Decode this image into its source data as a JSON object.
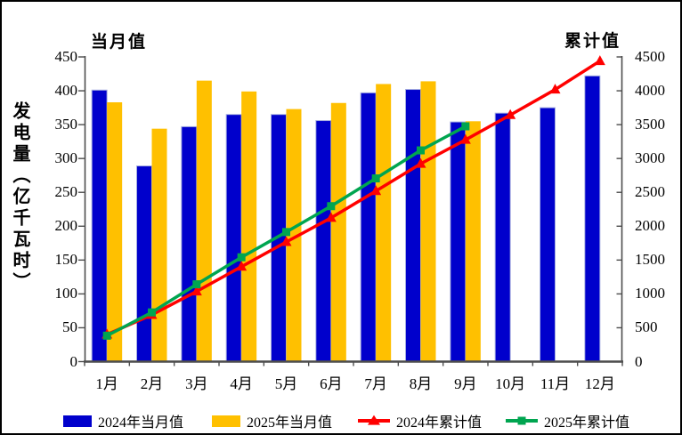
{
  "chart_data": {
    "type": "bar",
    "title": "",
    "categories": [
      "1月",
      "2月",
      "3月",
      "4月",
      "5月",
      "6月",
      "7月",
      "8月",
      "9月",
      "10月",
      "11月",
      "12月"
    ],
    "series": [
      {
        "name": "2024年当月值",
        "kind": "bar",
        "axis": "left",
        "color": "#0000CC",
        "values": [
          401,
          289,
          347,
          365,
          365,
          356,
          397,
          402,
          354,
          367,
          375,
          422
        ]
      },
      {
        "name": "2025年当月值",
        "kind": "bar",
        "axis": "left",
        "color": "#FFC000",
        "values": [
          383,
          344,
          415,
          399,
          373,
          382,
          410,
          414,
          355
        ]
      },
      {
        "name": "2024年累计值",
        "kind": "line",
        "axis": "right",
        "color": "#FF0000",
        "marker": "triangle",
        "values": [
          401,
          690,
          1037,
          1402,
          1767,
          2123,
          2520,
          2922,
          3276,
          3643,
          4018,
          4440
        ]
      },
      {
        "name": "2025年累计值",
        "kind": "line",
        "axis": "right",
        "color": "#00A550",
        "marker": "square",
        "values": [
          383,
          727,
          1142,
          1541,
          1914,
          2296,
          2706,
          3120,
          3475
        ]
      }
    ],
    "left_axis": {
      "title": "当月值",
      "min": 0,
      "max": 450,
      "step": 50
    },
    "right_axis": {
      "title": "累计值",
      "min": 0,
      "max": 4500,
      "step": 500
    },
    "ylabel": "发电量（亿千瓦时）",
    "legend_position": "bottom",
    "grid": false,
    "colors": {
      "axis": "#4d4d4d",
      "text": "#000000",
      "background": "#ffffff"
    }
  }
}
